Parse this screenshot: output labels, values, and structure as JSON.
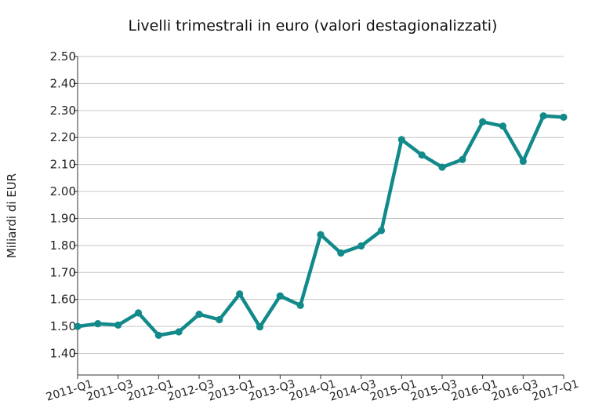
{
  "chart_data": {
    "type": "line",
    "title": "Livelli trimestrali in euro (valori destagionalizzati)",
    "xlabel": "",
    "ylabel": "Miliardi di EUR",
    "ylim": [
      1.32,
      2.5
    ],
    "yticks": [
      1.4,
      1.5,
      1.6,
      1.7,
      1.8,
      1.9,
      2.0,
      2.1,
      2.2,
      2.3,
      2.4,
      2.5
    ],
    "grid": true,
    "x": [
      "2011-Q1",
      "2011-Q2",
      "2011-Q3",
      "2011-Q4",
      "2012-Q1",
      "2012-Q2",
      "2012-Q3",
      "2012-Q4",
      "2013-Q1",
      "2013-Q2",
      "2013-Q3",
      "2013-Q4",
      "2014-Q1",
      "2014-Q2",
      "2014-Q3",
      "2014-Q4",
      "2015-Q1",
      "2015-Q2",
      "2015-Q3",
      "2015-Q4",
      "2016-Q1",
      "2016-Q2",
      "2016-Q3",
      "2016-Q4",
      "2017-Q1"
    ],
    "xtick_labels": [
      "2011-Q1",
      "2011-Q3",
      "2012-Q1",
      "2012-Q3",
      "2013-Q1",
      "2013-Q3",
      "2014-Q1",
      "2014-Q3",
      "2015-Q1",
      "2015-Q3",
      "2016-Q1",
      "2016-Q3",
      "2017-Q1"
    ],
    "series": [
      {
        "color": "#12898a",
        "values": [
          1.5,
          1.51,
          1.505,
          1.55,
          1.467,
          1.48,
          1.545,
          1.525,
          1.62,
          1.498,
          1.613,
          1.578,
          1.84,
          1.772,
          1.798,
          1.855,
          2.192,
          2.135,
          2.09,
          2.118,
          2.258,
          2.242,
          2.112,
          2.28,
          2.275
        ]
      }
    ]
  }
}
